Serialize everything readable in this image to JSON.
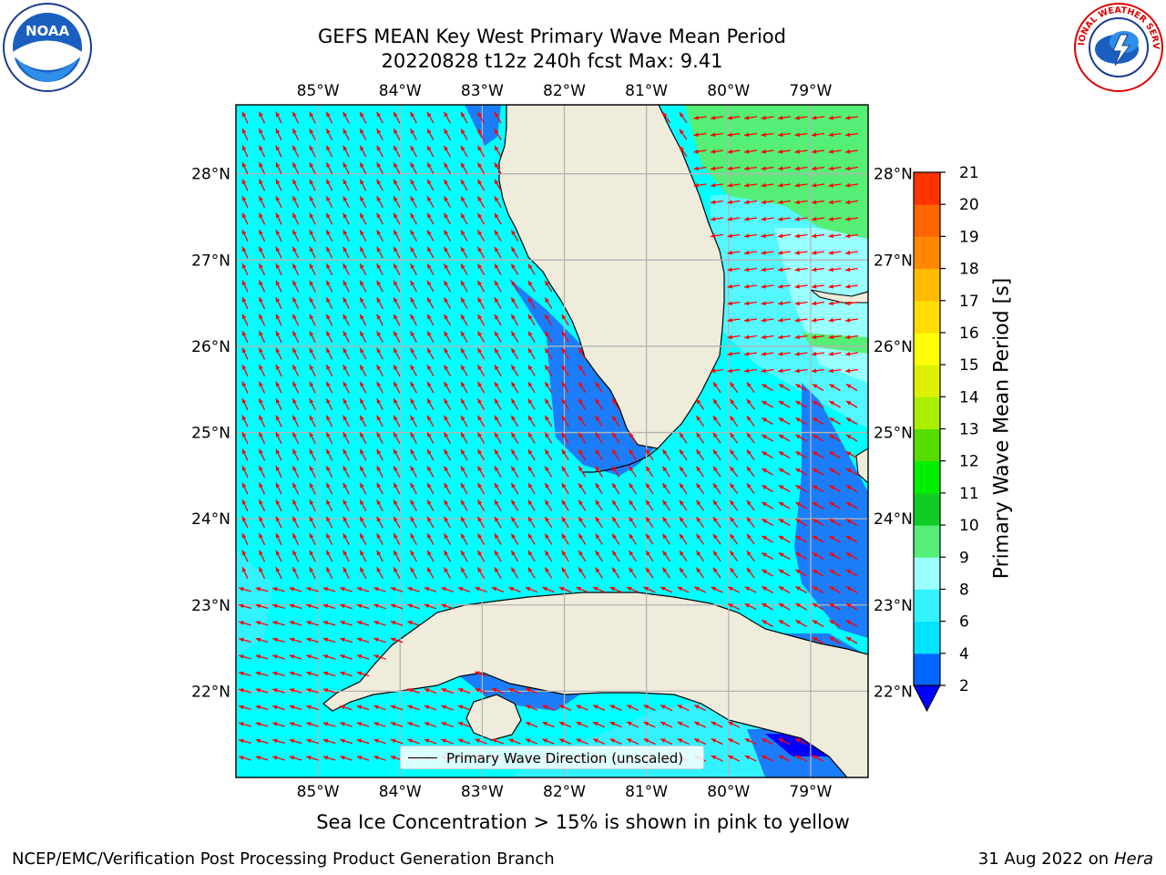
{
  "title_line1": "GEFS MEAN Key West Primary Wave Mean Period",
  "title_line2": "20220828 t12z 240h fcst   Max: 9.41",
  "bottom_note": "Sea Ice Concentration > 15% is shown in pink to yellow",
  "footer_left": "NCEP/EMC/Verification Post Processing Product Generation Branch",
  "footer_date": "31 Aug 2022",
  "footer_on": "on",
  "footer_host": "Hera",
  "legend_label": "Primary Wave Direction (unscaled)",
  "colorbar": {
    "label": "Primary Wave Mean Period [s]",
    "ticks": [
      "2",
      "4",
      "6",
      "8",
      "9",
      "10",
      "11",
      "12",
      "13",
      "14",
      "15",
      "16",
      "17",
      "18",
      "19",
      "20",
      "21"
    ],
    "colors": [
      "#0066ff",
      "#00e5ff",
      "#33f2ff",
      "#99ffff",
      "#55ee77",
      "#11cc22",
      "#00ee00",
      "#55dd00",
      "#aaee00",
      "#ddf000",
      "#ffff00",
      "#ffdd00",
      "#ffbb00",
      "#ff8800",
      "#ff6600",
      "#ff3300"
    ],
    "under_color": "#0000ff"
  },
  "longitude_labels": [
    "85°W",
    "84°W",
    "83°W",
    "82°W",
    "81°W",
    "80°W",
    "79°W"
  ],
  "latitude_labels": [
    "28°N",
    "27°N",
    "26°N",
    "25°N",
    "24°N",
    "23°N",
    "22°N"
  ],
  "map": {
    "lon_range": [
      -86.0,
      -78.3
    ],
    "lat_range": [
      21.0,
      28.8
    ],
    "land_color": "#efecdc",
    "water_color": "#00ffff",
    "arrow_color": "#ff0000"
  },
  "logos": {
    "noaa": {
      "text": "NOAA"
    },
    "nws": {
      "text": "NATIONAL WEATHER SERVICE"
    }
  },
  "icons": [
    "noaa-logo-icon",
    "nws-logo-icon",
    "colorbar-under-triangle-icon"
  ]
}
